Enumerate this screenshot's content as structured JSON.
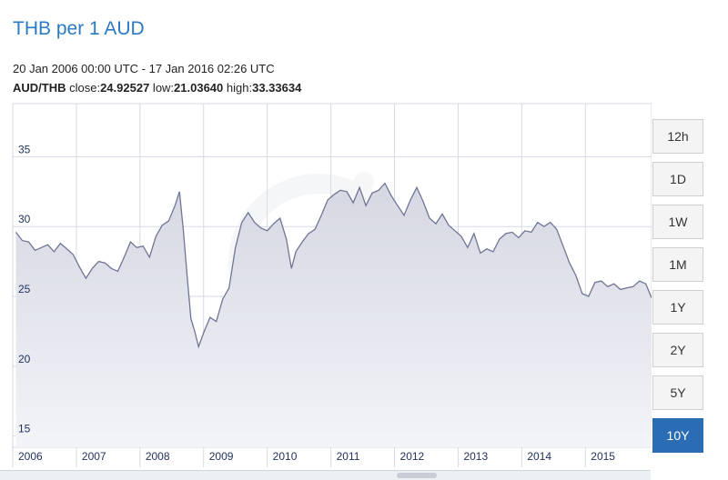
{
  "header": {
    "title": "THB per 1 AUD",
    "range": "20 Jan 2006 00:00 UTC - 17 Jan 2016 02:26 UTC",
    "pair": "AUD/THB",
    "close_label": " close:",
    "close_value": "24.92527",
    "low_label": " low:",
    "low_value": "21.03640",
    "high_label": " high:",
    "high_value": "33.33634"
  },
  "buttons": [
    {
      "label": "12h",
      "active": false
    },
    {
      "label": "1D",
      "active": false
    },
    {
      "label": "1W",
      "active": false
    },
    {
      "label": "1M",
      "active": false
    },
    {
      "label": "1Y",
      "active": false
    },
    {
      "label": "2Y",
      "active": false
    },
    {
      "label": "5Y",
      "active": false
    },
    {
      "label": "10Y",
      "active": true
    }
  ],
  "colors": {
    "line": "#6f7595",
    "fill_top": "#d5d7e2",
    "fill_bottom": "#f3f4f8",
    "grid": "#d6dae3",
    "axis_text": "#1f2f5a",
    "accent": "#2a6db5"
  },
  "chart_data": {
    "type": "area",
    "xlim": [
      2006.0,
      2016.04
    ],
    "ylim": [
      14.2,
      38.8
    ],
    "y_ticks": [
      15,
      20,
      25,
      30,
      35
    ],
    "x_ticks": [
      "2006",
      "2007",
      "2008",
      "2009",
      "2010",
      "2011",
      "2012",
      "2013",
      "2014",
      "2015"
    ],
    "grid": true,
    "legend": "none",
    "series": [
      {
        "x": [
          2006.05,
          2006.15,
          2006.25,
          2006.35,
          2006.45,
          2006.55,
          2006.65,
          2006.75,
          2006.85,
          2006.95,
          2007.05,
          2007.15,
          2007.25,
          2007.35,
          2007.45,
          2007.55,
          2007.65,
          2007.75,
          2007.85,
          2007.95,
          2008.05,
          2008.15,
          2008.25,
          2008.35,
          2008.45,
          2008.55,
          2008.62,
          2008.68,
          2008.74,
          2008.8,
          2008.86,
          2008.92,
          2009.0,
          2009.1,
          2009.2,
          2009.3,
          2009.4,
          2009.5,
          2009.6,
          2009.7,
          2009.8,
          2009.9,
          2010.0,
          2010.1,
          2010.2,
          2010.3,
          2010.38,
          2010.45,
          2010.55,
          2010.65,
          2010.75,
          2010.85,
          2010.95,
          2011.05,
          2011.15,
          2011.25,
          2011.35,
          2011.45,
          2011.55,
          2011.65,
          2011.75,
          2011.85,
          2011.95,
          2012.05,
          2012.15,
          2012.25,
          2012.35,
          2012.45,
          2012.55,
          2012.65,
          2012.75,
          2012.85,
          2012.95,
          2013.05,
          2013.15,
          2013.25,
          2013.35,
          2013.45,
          2013.55,
          2013.65,
          2013.75,
          2013.85,
          2013.95,
          2014.05,
          2014.15,
          2014.25,
          2014.35,
          2014.45,
          2014.55,
          2014.65,
          2014.75,
          2014.85,
          2014.95,
          2015.05,
          2015.15,
          2015.25,
          2015.35,
          2015.45,
          2015.55,
          2015.65,
          2015.75,
          2015.85,
          2015.95,
          2016.04
        ],
        "y": [
          29.6,
          29.0,
          28.9,
          28.3,
          28.5,
          28.7,
          28.2,
          28.8,
          28.4,
          28.0,
          27.1,
          26.3,
          27.0,
          27.5,
          27.4,
          27.0,
          26.8,
          27.8,
          28.9,
          28.5,
          28.6,
          27.8,
          29.3,
          30.1,
          30.4,
          31.5,
          32.5,
          29.8,
          26.5,
          23.4,
          22.5,
          21.4,
          22.4,
          23.5,
          23.2,
          24.8,
          25.6,
          28.5,
          30.3,
          31.0,
          30.3,
          29.9,
          29.7,
          30.2,
          30.6,
          29.1,
          27.0,
          28.2,
          28.9,
          29.5,
          29.8,
          30.8,
          31.9,
          32.3,
          32.6,
          32.5,
          31.7,
          32.8,
          31.5,
          32.4,
          32.6,
          33.1,
          32.2,
          31.5,
          30.8,
          31.9,
          32.8,
          31.8,
          30.6,
          30.2,
          30.9,
          30.1,
          29.7,
          29.3,
          28.5,
          29.5,
          28.1,
          28.4,
          28.2,
          29.1,
          29.5,
          29.6,
          29.2,
          29.7,
          29.6,
          30.3,
          30.0,
          30.3,
          29.8,
          28.6,
          27.4,
          26.5,
          25.2,
          25.0,
          26.0,
          26.1,
          25.7,
          25.9,
          25.5,
          25.6,
          25.7,
          26.1,
          25.9,
          24.9
        ]
      }
    ]
  }
}
